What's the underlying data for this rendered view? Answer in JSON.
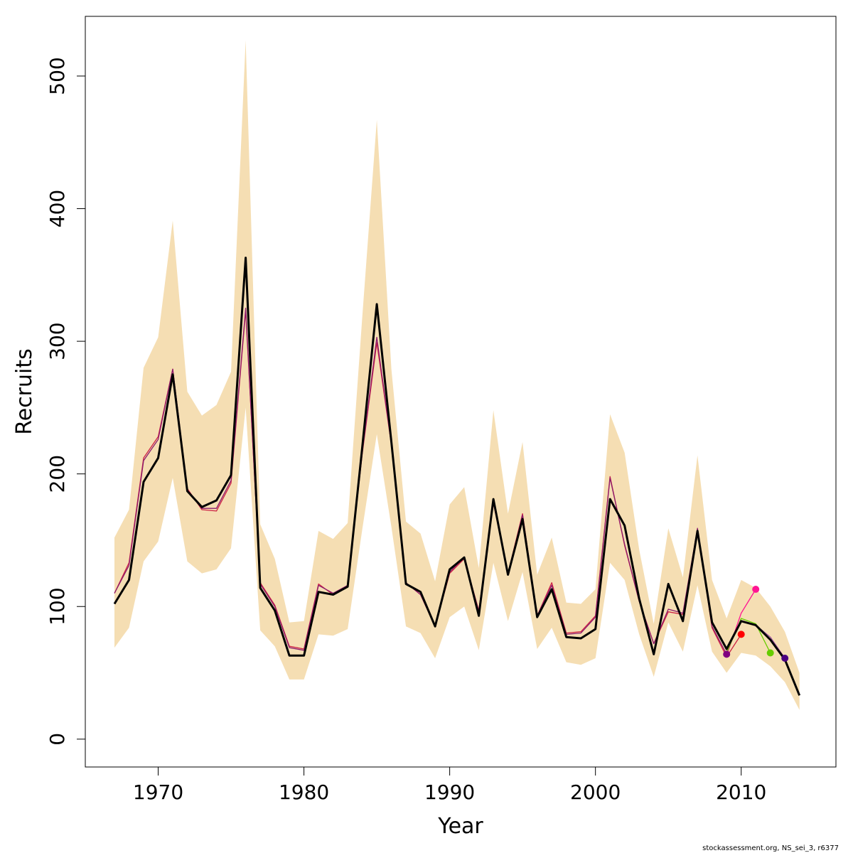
{
  "chart_data": {
    "type": "line",
    "xlabel": "Year",
    "ylabel": "Recruits",
    "xlim": [
      1965,
      2016.5
    ],
    "ylim": [
      -21,
      545
    ],
    "x_ticks": [
      "1970",
      "1980",
      "1990",
      "2000",
      "2010"
    ],
    "y_ticks": [
      "0",
      "100",
      "200",
      "300",
      "400",
      "500"
    ],
    "band_color": "#f5deb3",
    "years": [
      1967,
      1968,
      1969,
      1970,
      1971,
      1972,
      1973,
      1974,
      1975,
      1976,
      1977,
      1978,
      1979,
      1980,
      1981,
      1982,
      1983,
      1984,
      1985,
      1986,
      1987,
      1988,
      1989,
      1990,
      1991,
      1992,
      1993,
      1994,
      1995,
      1996,
      1997,
      1998,
      1999,
      2000,
      2001,
      2002,
      2003,
      2004,
      2005,
      2006,
      2007,
      2008,
      2009,
      2010,
      2011,
      2012,
      2013,
      2014
    ],
    "confidence_band": {
      "lower": [
        69,
        84,
        134,
        149,
        197,
        134,
        125,
        128,
        144,
        250,
        82,
        70,
        45,
        45,
        79,
        78,
        83,
        158,
        230,
        160,
        85,
        80,
        61,
        92,
        100,
        67,
        133,
        89,
        126,
        68,
        84,
        58,
        56,
        61,
        133,
        120,
        79,
        47,
        88,
        66,
        116,
        66,
        50,
        65,
        63,
        55,
        43,
        22
      ],
      "upper": [
        152,
        173,
        280,
        303,
        391,
        262,
        244,
        252,
        277,
        527,
        162,
        136,
        88,
        89,
        157,
        151,
        163,
        318,
        467,
        279,
        164,
        155,
        119,
        177,
        190,
        129,
        248,
        170,
        224,
        124,
        152,
        103,
        102,
        113,
        245,
        216,
        143,
        87,
        159,
        122,
        214,
        120,
        91,
        120,
        114,
        100,
        81,
        50
      ]
    },
    "series": [
      {
        "color": "#000000",
        "values": [
          102,
          120,
          194,
          212,
          275,
          187,
          175,
          180,
          199,
          363,
          114,
          97,
          63,
          63,
          111,
          109,
          115,
          220,
          328,
          224,
          117,
          111,
          85,
          128,
          137,
          93,
          181,
          124,
          166,
          92,
          113,
          77,
          76,
          83,
          181,
          161,
          106,
          64,
          117,
          89,
          157,
          88,
          68,
          89,
          86,
          75,
          60,
          33
        ],
        "y_scale": "linear"
      },
      {
        "color": "#cc2244",
        "values": [
          110,
          133,
          212,
          228,
          279,
          189,
          173,
          172,
          193,
          323,
          118,
          101,
          70,
          68,
          117,
          109,
          116,
          215,
          299,
          222,
          118,
          109,
          85,
          125,
          136,
          97,
          178,
          125,
          170,
          93,
          118,
          80,
          81,
          93,
          198,
          146,
          104,
          72,
          96,
          94,
          158,
          84,
          62,
          79,
          null,
          null,
          null,
          null
        ]
      },
      {
        "color": "#8b1a6b",
        "values": [
          110,
          131,
          210,
          226,
          279,
          188,
          174,
          174,
          195,
          325,
          117,
          100,
          69,
          67,
          116,
          110,
          116,
          216,
          303,
          222,
          118,
          109,
          85,
          126,
          137,
          96,
          179,
          124,
          169,
          93,
          116,
          79,
          80,
          92,
          197,
          147,
          104,
          72,
          98,
          95,
          159,
          85,
          64,
          null,
          null,
          null,
          null,
          null
        ]
      },
      {
        "color": "#ff1493",
        "values": [
          null,
          null,
          null,
          null,
          null,
          null,
          null,
          null,
          null,
          null,
          null,
          null,
          null,
          null,
          null,
          null,
          null,
          null,
          null,
          null,
          null,
          null,
          null,
          null,
          null,
          null,
          null,
          null,
          null,
          null,
          null,
          null,
          null,
          null,
          null,
          null,
          null,
          null,
          null,
          null,
          null,
          null,
          63,
          95,
          113,
          null,
          null,
          null
        ]
      },
      {
        "color": "#66cc00",
        "values": [
          null,
          null,
          null,
          null,
          null,
          null,
          null,
          null,
          null,
          null,
          null,
          null,
          null,
          null,
          null,
          null,
          null,
          null,
          null,
          null,
          null,
          null,
          null,
          null,
          null,
          null,
          null,
          null,
          null,
          null,
          null,
          null,
          null,
          null,
          null,
          null,
          null,
          null,
          null,
          null,
          null,
          null,
          65,
          91,
          87,
          65,
          null,
          null
        ]
      },
      {
        "color": "#9b4fa0",
        "values": [
          null,
          null,
          null,
          null,
          null,
          null,
          null,
          null,
          null,
          null,
          null,
          null,
          null,
          null,
          null,
          null,
          null,
          null,
          null,
          null,
          null,
          null,
          null,
          null,
          null,
          null,
          null,
          null,
          null,
          null,
          null,
          null,
          null,
          null,
          null,
          null,
          null,
          null,
          null,
          null,
          null,
          null,
          null,
          null,
          86,
          77,
          61,
          null
        ]
      }
    ],
    "points": [
      {
        "x": 2009,
        "y": 64,
        "color": "#800080"
      },
      {
        "x": 2010,
        "y": 79,
        "color": "#ff0000"
      },
      {
        "x": 2011,
        "y": 113,
        "color": "#ff1493"
      },
      {
        "x": 2012,
        "y": 65,
        "color": "#66cc00"
      },
      {
        "x": 2013,
        "y": 61,
        "color": "#4b0082"
      }
    ]
  },
  "footer": {
    "credit": "stockassessment.org, NS_sei_3, r6377"
  }
}
